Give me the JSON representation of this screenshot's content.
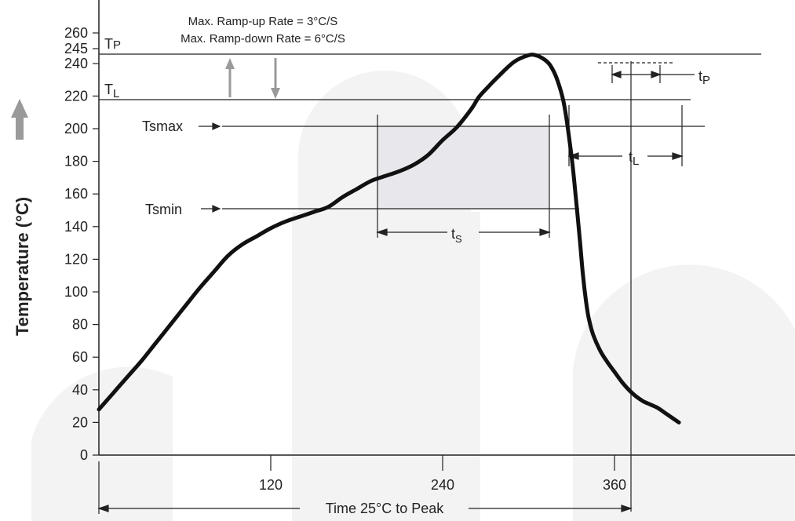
{
  "chart_data": {
    "type": "line",
    "title": "",
    "xlabel": "Time 25°C to Peak",
    "ylabel": "Temperature (°C)",
    "xlim": [
      0,
      400
    ],
    "ylim": [
      0,
      270
    ],
    "x_ticks": [
      120,
      240,
      360
    ],
    "y_ticks": [
      0,
      20,
      40,
      60,
      80,
      100,
      120,
      140,
      160,
      180,
      200,
      220,
      240,
      245,
      260
    ],
    "series": [
      {
        "x": [
          0,
          10,
          20,
          30,
          40,
          50,
          60,
          70,
          80,
          90,
          100,
          110,
          120,
          130,
          140,
          150,
          160,
          170,
          180,
          190,
          200,
          210,
          220,
          230,
          240,
          250,
          260,
          265,
          270,
          280,
          290,
          300,
          305,
          310,
          315,
          320,
          325,
          330,
          333,
          336,
          338,
          340,
          342,
          345,
          350,
          355,
          360,
          365,
          370,
          375,
          380,
          385,
          390,
          395,
          400,
          405
        ],
        "y": [
          28,
          38,
          48,
          58,
          69,
          80,
          91,
          102,
          112,
          122,
          129,
          134,
          139,
          143,
          146,
          149,
          152,
          158,
          163,
          168,
          171,
          174,
          178,
          184,
          193,
          201,
          212,
          219,
          224,
          233,
          241,
          245,
          245,
          243,
          239,
          230,
          214,
          183,
          158,
          130,
          110,
          95,
          84,
          74,
          64,
          57,
          51,
          45,
          40,
          36,
          33,
          31,
          29,
          26,
          23,
          20
        ]
      }
    ],
    "reference_lines": [
      {
        "label": "TP",
        "value": 245
      },
      {
        "label": "TL",
        "value": 217
      },
      {
        "label": "Tsmax",
        "value": 200
      },
      {
        "label": "Tsmin",
        "value": 150
      }
    ],
    "annotations": [
      "Max. Ramp-up Rate = 3°C/S",
      "Max. Ramp-down Rate = 6°C/S"
    ],
    "interval_labels": [
      "ts",
      "tL",
      "tP"
    ]
  },
  "labels": {
    "ramp_up": "Max. Ramp-up Rate = 3°C/S",
    "ramp_down": "Max. Ramp-down Rate = 6°C/S",
    "tp_main": "T",
    "tp_sub": "P",
    "tl_main": "T",
    "tl_sub": "L",
    "tsmax": "Tsmax",
    "tsmin": "Tsmin",
    "ts_main": "t",
    "ts_sub": "S",
    "tl_interval_main": "t",
    "tl_interval_sub": "L",
    "tp_interval_main": "t",
    "tp_interval_sub": "P",
    "time_label": "Time 25°C to Peak",
    "ylabel": "Temperature (°C)"
  },
  "colors": {
    "curve": "#111111",
    "axis": "#222222",
    "shade": "#e8e8ec",
    "watermark": "#f3f3f3",
    "arrow_gray": "#9a9a9a"
  }
}
